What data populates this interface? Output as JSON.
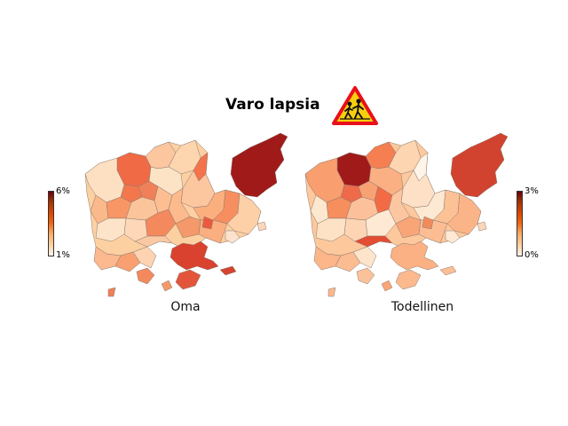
{
  "title": "Varo lapsia",
  "sign": {
    "icon": "children-crossing-warning-sign",
    "border_color": "#e8101a",
    "fill_color": "#f7cf0e"
  },
  "panels": [
    {
      "label": "Oma",
      "colorbar": {
        "max_label": "6%",
        "min_label": "1%"
      }
    },
    {
      "label": "Todellinen",
      "colorbar": {
        "max_label": "3%",
        "min_label": "0%"
      }
    }
  ],
  "colormap": [
    "#fff5eb",
    "#fdd0a2",
    "#fdae6b",
    "#f16913",
    "#d94801",
    "#a63603",
    "#7f2704"
  ]
}
